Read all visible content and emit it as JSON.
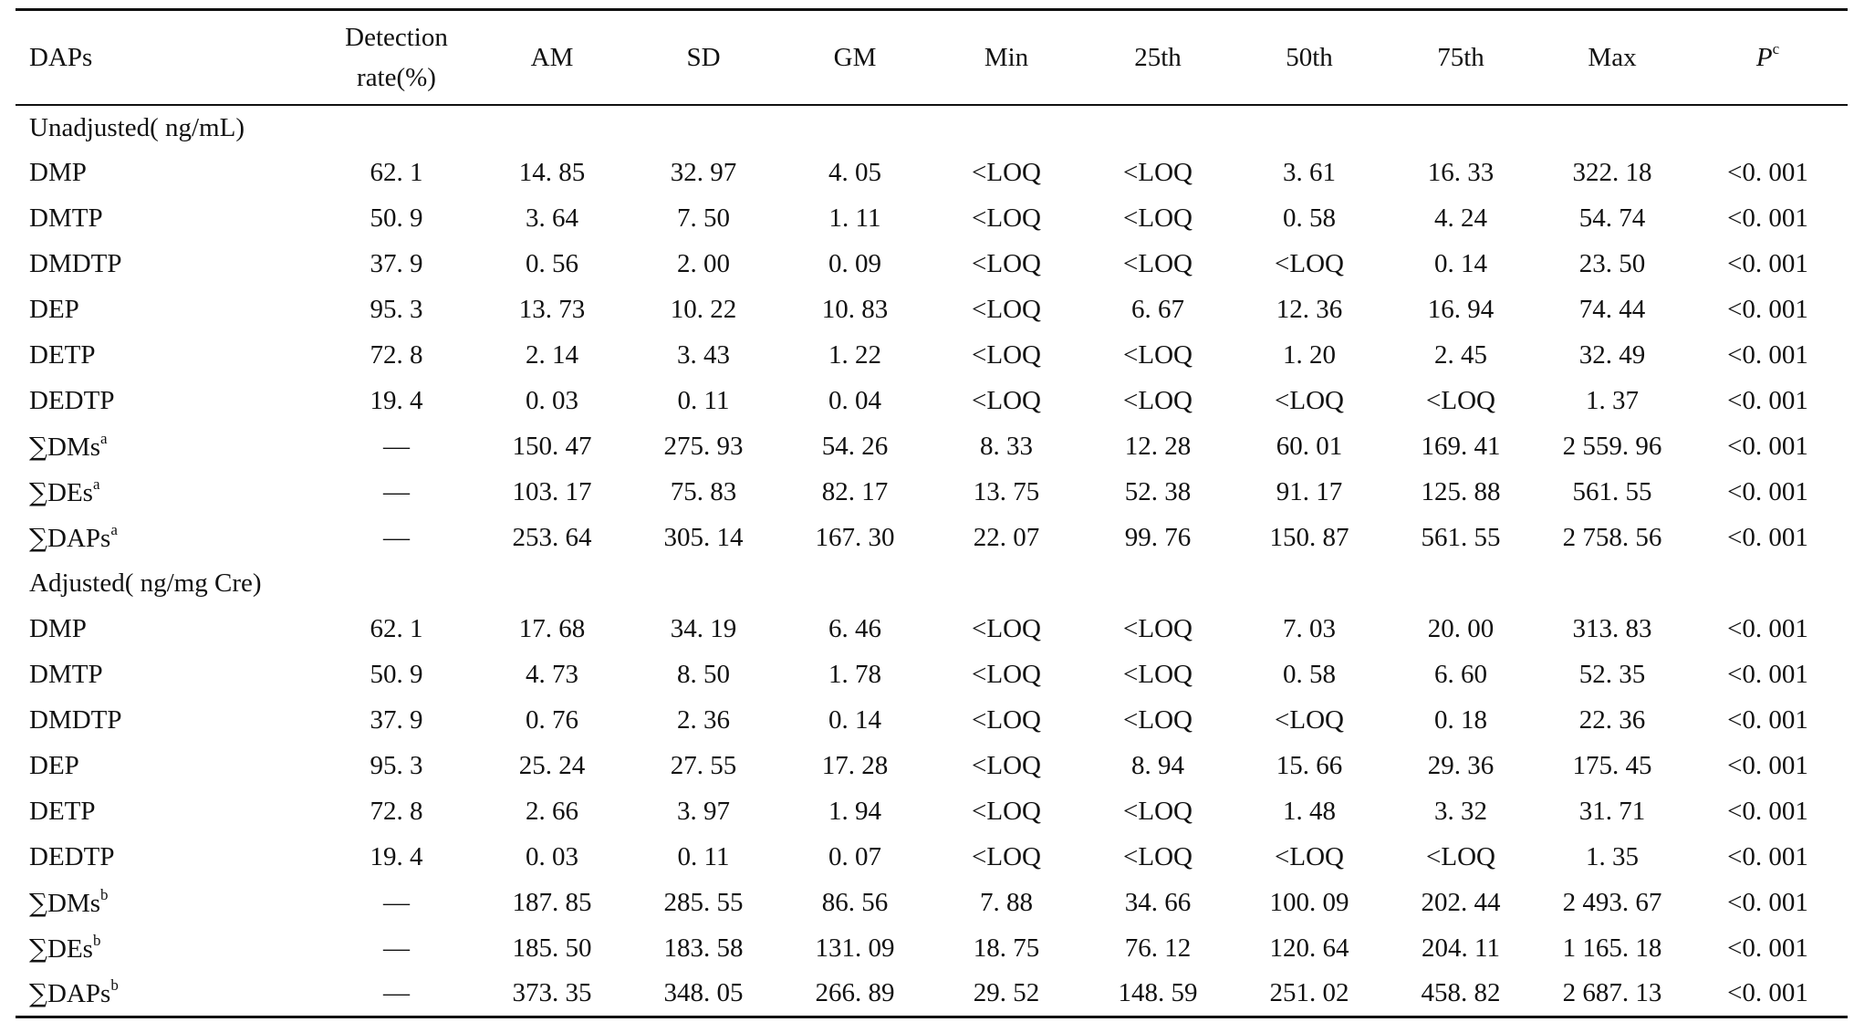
{
  "columns": [
    "DAPs",
    "Detection rate(%)",
    "AM",
    "SD",
    "GM",
    "Min",
    "25th",
    "50th",
    "75th",
    "Max",
    "P"
  ],
  "header": {
    "daps": "DAPs",
    "detection_line1": "Detection",
    "detection_line2": "rate(%)",
    "am": "AM",
    "sd": "SD",
    "gm": "GM",
    "min": "Min",
    "p25": "25th",
    "p50": "50th",
    "p75": "75th",
    "max": "Max",
    "p": "P",
    "p_sup": "c"
  },
  "sections": [
    {
      "label": "Unadjusted( ng/mL)",
      "rows": [
        {
          "prefix": "",
          "name": "DMP",
          "sup": "",
          "values": [
            "62. 1",
            "14. 85",
            "32. 97",
            "4. 05",
            "<LOQ",
            "<LOQ",
            "3. 61",
            "16. 33",
            "322. 18",
            "<0. 001"
          ]
        },
        {
          "prefix": "",
          "name": "DMTP",
          "sup": "",
          "values": [
            "50. 9",
            "3. 64",
            "7. 50",
            "1. 11",
            "<LOQ",
            "<LOQ",
            "0. 58",
            "4. 24",
            "54. 74",
            "<0. 001"
          ]
        },
        {
          "prefix": "",
          "name": "DMDTP",
          "sup": "",
          "values": [
            "37. 9",
            "0. 56",
            "2. 00",
            "0. 09",
            "<LOQ",
            "<LOQ",
            "<LOQ",
            "0. 14",
            "23. 50",
            "<0. 001"
          ]
        },
        {
          "prefix": "",
          "name": "DEP",
          "sup": "",
          "values": [
            "95. 3",
            "13. 73",
            "10. 22",
            "10. 83",
            "<LOQ",
            "6. 67",
            "12. 36",
            "16. 94",
            "74. 44",
            "<0. 001"
          ]
        },
        {
          "prefix": "",
          "name": "DETP",
          "sup": "",
          "values": [
            "72. 8",
            "2. 14",
            "3. 43",
            "1. 22",
            "<LOQ",
            "<LOQ",
            "1. 20",
            "2. 45",
            "32. 49",
            "<0. 001"
          ]
        },
        {
          "prefix": "",
          "name": "DEDTP",
          "sup": "",
          "values": [
            "19. 4",
            "0. 03",
            "0. 11",
            "0. 04",
            "<LOQ",
            "<LOQ",
            "<LOQ",
            "<LOQ",
            "1. 37",
            "<0. 001"
          ]
        },
        {
          "prefix": "∑",
          "name": "DMs",
          "sup": "a",
          "values": [
            "—",
            "150. 47",
            "275. 93",
            "54. 26",
            "8. 33",
            "12. 28",
            "60. 01",
            "169. 41",
            "2 559. 96",
            "<0. 001"
          ]
        },
        {
          "prefix": "∑",
          "name": "DEs",
          "sup": "a",
          "values": [
            "—",
            "103. 17",
            "75. 83",
            "82. 17",
            "13. 75",
            "52. 38",
            "91. 17",
            "125. 88",
            "561. 55",
            "<0. 001"
          ]
        },
        {
          "prefix": "∑",
          "name": "DAPs",
          "sup": "a",
          "values": [
            "—",
            "253. 64",
            "305. 14",
            "167. 30",
            "22. 07",
            "99. 76",
            "150. 87",
            "561. 55",
            "2 758. 56",
            "<0. 001"
          ]
        }
      ]
    },
    {
      "label": "Adjusted( ng/mg Cre)",
      "rows": [
        {
          "prefix": "",
          "name": "DMP",
          "sup": "",
          "values": [
            "62. 1",
            "17. 68",
            "34. 19",
            "6. 46",
            "<LOQ",
            "<LOQ",
            "7. 03",
            "20. 00",
            "313. 83",
            "<0. 001"
          ]
        },
        {
          "prefix": "",
          "name": "DMTP",
          "sup": "",
          "values": [
            "50. 9",
            "4. 73",
            "8. 50",
            "1. 78",
            "<LOQ",
            "<LOQ",
            "0. 58",
            "6. 60",
            "52. 35",
            "<0. 001"
          ]
        },
        {
          "prefix": "",
          "name": "DMDTP",
          "sup": "",
          "values": [
            "37. 9",
            "0. 76",
            "2. 36",
            "0. 14",
            "<LOQ",
            "<LOQ",
            "<LOQ",
            "0. 18",
            "22. 36",
            "<0. 001"
          ]
        },
        {
          "prefix": "",
          "name": "DEP",
          "sup": "",
          "values": [
            "95. 3",
            "25. 24",
            "27. 55",
            "17. 28",
            "<LOQ",
            "8. 94",
            "15. 66",
            "29. 36",
            "175. 45",
            "<0. 001"
          ]
        },
        {
          "prefix": "",
          "name": "DETP",
          "sup": "",
          "values": [
            "72. 8",
            "2. 66",
            "3. 97",
            "1. 94",
            "<LOQ",
            "<LOQ",
            "1. 48",
            "3. 32",
            "31. 71",
            "<0. 001"
          ]
        },
        {
          "prefix": "",
          "name": "DEDTP",
          "sup": "",
          "values": [
            "19. 4",
            "0. 03",
            "0. 11",
            "0. 07",
            "<LOQ",
            "<LOQ",
            "<LOQ",
            "<LOQ",
            "1. 35",
            "<0. 001"
          ]
        },
        {
          "prefix": "∑",
          "name": "DMs",
          "sup": "b",
          "values": [
            "—",
            "187. 85",
            "285. 55",
            "86. 56",
            "7. 88",
            "34. 66",
            "100. 09",
            "202. 44",
            "2 493. 67",
            "<0. 001"
          ]
        },
        {
          "prefix": "∑",
          "name": "DEs",
          "sup": "b",
          "values": [
            "—",
            "185. 50",
            "183. 58",
            "131. 09",
            "18. 75",
            "76. 12",
            "120. 64",
            "204. 11",
            "1 165. 18",
            "<0. 001"
          ]
        },
        {
          "prefix": "∑",
          "name": "DAPs",
          "sup": "b",
          "values": [
            "—",
            "373. 35",
            "348. 05",
            "266. 89",
            "29. 52",
            "148. 59",
            "251. 02",
            "458. 82",
            "2 687. 13",
            "<0. 001"
          ]
        }
      ]
    }
  ]
}
